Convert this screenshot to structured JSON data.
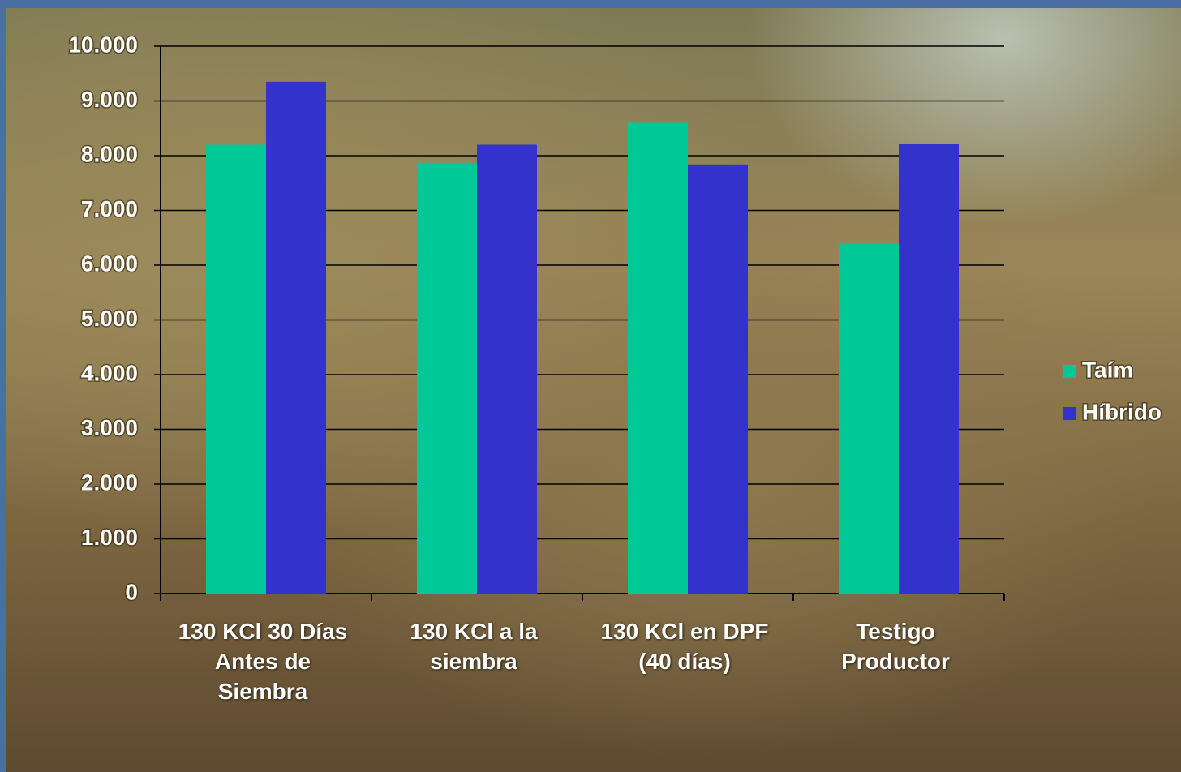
{
  "chart_data": {
    "type": "bar",
    "categories": [
      "130 KCl 30 Días\nAntes de\nSiembra",
      "130 KCl a la\nsiembra",
      "130 KCl en DPF\n(40 días)",
      "Testigo\nProductor"
    ],
    "series": [
      {
        "name": "Taím",
        "color": "#00c896",
        "values": [
          8200,
          7870,
          8600,
          6390
        ]
      },
      {
        "name": "Híbrido",
        "color": "#3333cc",
        "values": [
          9350,
          8200,
          7840,
          8220
        ]
      }
    ],
    "ylim": [
      0,
      10000
    ],
    "yticks": [
      0,
      {
        "value": 1000,
        "label": "1.000"
      },
      {
        "value": 2000,
        "label": "2.000"
      },
      {
        "value": 3000,
        "label": "3.000"
      },
      {
        "value": 4000,
        "label": "4.000"
      },
      {
        "value": 5000,
        "label": "5.000"
      },
      {
        "value": 6000,
        "label": "6.000"
      },
      {
        "value": 7000,
        "label": "7.000"
      },
      {
        "value": 8000,
        "label": "8.000"
      },
      {
        "value": 9000,
        "label": "9.000"
      },
      {
        "value": 10000,
        "label": "10.000"
      }
    ],
    "grid": true,
    "legend": "right"
  }
}
